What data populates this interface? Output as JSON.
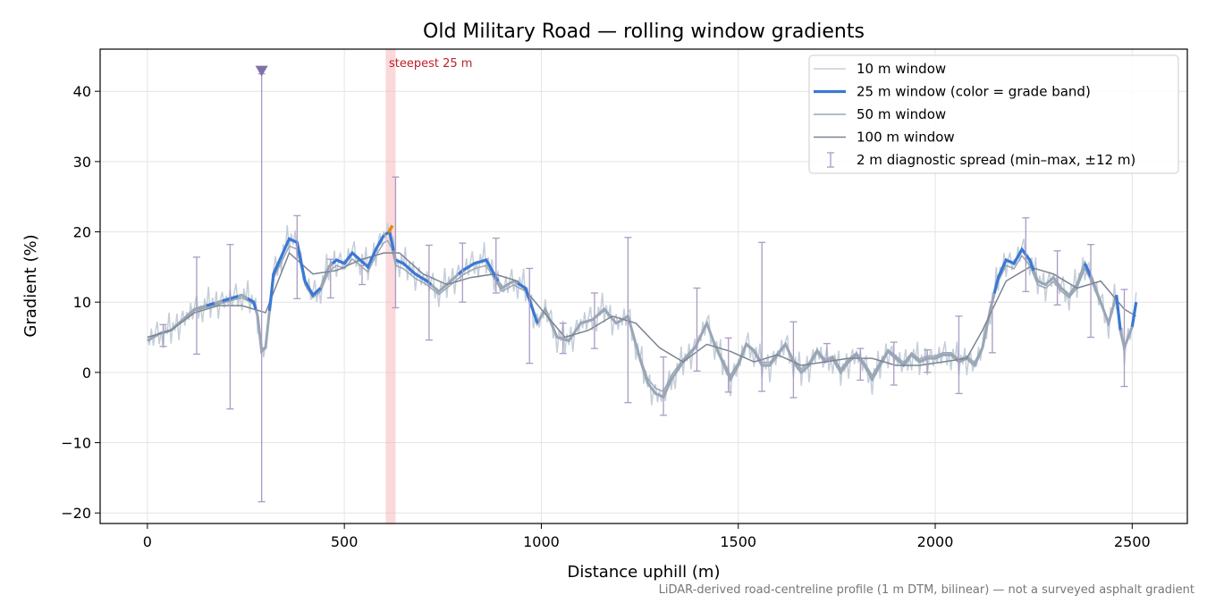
{
  "chart_data": {
    "type": "line",
    "title": "Old Military Road — rolling window gradients",
    "xlabel": "Distance uphill (m)",
    "ylabel": "Gradient (%)",
    "xlim": [
      -120,
      2640
    ],
    "ylim": [
      -21.5,
      46
    ],
    "x_ticks": [
      0,
      500,
      1000,
      1500,
      2000,
      2500
    ],
    "y_ticks": [
      -20,
      -10,
      0,
      10,
      20,
      30,
      40
    ],
    "grid": true,
    "legend_position": "top-right",
    "footnote": "LiDAR-derived road-centreline profile (1 m DTM, bilinear) — not a surveyed asphalt gradient",
    "annotations": {
      "steepest_label": "steepest 25 m",
      "steepest_span": [
        605,
        630
      ],
      "marker": {
        "x": 290,
        "y": 43
      }
    },
    "colors": {
      "w10": "#c5ced9",
      "w25": "#3a78d4",
      "w50": "#99a6b5",
      "w100": "#7a8490",
      "steep_point": "#e08a10",
      "errorbar": "#a99bc2",
      "marker": "#8071a8",
      "highlight_band": "#f5b3b8"
    },
    "profile": {
      "x": [
        0,
        30,
        60,
        90,
        120,
        150,
        180,
        210,
        240,
        270,
        280,
        290,
        300,
        320,
        340,
        360,
        380,
        400,
        420,
        440,
        460,
        480,
        500,
        520,
        540,
        560,
        580,
        600,
        615,
        630,
        650,
        680,
        710,
        740,
        770,
        800,
        830,
        860,
        880,
        900,
        930,
        960,
        990,
        1010,
        1040,
        1070,
        1100,
        1130,
        1160,
        1190,
        1220,
        1250,
        1270,
        1290,
        1310,
        1330,
        1360,
        1390,
        1420,
        1440,
        1460,
        1480,
        1500,
        1520,
        1540,
        1560,
        1580,
        1600,
        1620,
        1640,
        1660,
        1680,
        1700,
        1720,
        1740,
        1760,
        1780,
        1800,
        1820,
        1840,
        1860,
        1880,
        1900,
        1920,
        1940,
        1960,
        1980,
        2000,
        2020,
        2040,
        2060,
        2080,
        2100,
        2120,
        2140,
        2160,
        2180,
        2200,
        2220,
        2240,
        2260,
        2280,
        2300,
        2320,
        2340,
        2360,
        2380,
        2400,
        2420,
        2440,
        2460,
        2470,
        2480,
        2500,
        2510
      ],
      "y": [
        4.5,
        5.5,
        6,
        7.5,
        9,
        9.5,
        10,
        10.5,
        11,
        10,
        8,
        3,
        3.5,
        14,
        16.5,
        19,
        18.5,
        13,
        11,
        12,
        15,
        16,
        15.5,
        17,
        16,
        15,
        17.5,
        19.5,
        20,
        16,
        15.5,
        14,
        13,
        11.5,
        13,
        14.5,
        15.5,
        16,
        14,
        12,
        13,
        12,
        7,
        9,
        5,
        4.5,
        7,
        7.5,
        9,
        7,
        8,
        2,
        -1.5,
        -3,
        -3.5,
        -1,
        1.5,
        3.5,
        7,
        4,
        1.5,
        -1,
        1,
        4,
        3,
        1,
        1,
        2.5,
        4,
        1.5,
        0,
        1,
        3,
        1.5,
        2,
        0,
        1.5,
        2.5,
        1,
        -1,
        1,
        3,
        2,
        1,
        2.5,
        1.5,
        2,
        2,
        2.5,
        2.5,
        1.5,
        2,
        1,
        3.5,
        9,
        13.5,
        16,
        15.5,
        17.5,
        16,
        13,
        12.5,
        13.5,
        12,
        11,
        12.5,
        15.5,
        13,
        10,
        7,
        11,
        6,
        3.5,
        6.5,
        10
      ]
    },
    "w10_offsets": [
      0.6,
      -0.8,
      1.4,
      -1.2,
      0.5,
      1.9,
      -1.5,
      0.3,
      -2.2,
      1.1,
      -0.4,
      2.6,
      -1.9,
      0.9,
      -0.6,
      1.6,
      -2.4,
      0.2,
      1.3,
      -1.1
    ],
    "w100": {
      "x": [
        0,
        60,
        120,
        180,
        240,
        300,
        360,
        420,
        480,
        540,
        600,
        640,
        700,
        760,
        820,
        880,
        940,
        1000,
        1060,
        1120,
        1180,
        1240,
        1300,
        1360,
        1420,
        1480,
        1540,
        1600,
        1660,
        1720,
        1780,
        1840,
        1900,
        1960,
        2020,
        2080,
        2120,
        2180,
        2240,
        2300,
        2360,
        2420,
        2480,
        2510
      ],
      "y": [
        5,
        6,
        8.5,
        9.5,
        9.5,
        8.5,
        17,
        14,
        14.5,
        16,
        17,
        17,
        14,
        12.5,
        13.5,
        14,
        13,
        9,
        5,
        6,
        8,
        7,
        3.5,
        1.5,
        4,
        3,
        1.5,
        2.5,
        1,
        1.5,
        2,
        2,
        1,
        1,
        1.5,
        2,
        6,
        13,
        15,
        14,
        12,
        13,
        9,
        8
      ]
    },
    "band_ranges": [
      [
        150,
        170
      ],
      [
        190,
        230
      ],
      [
        255,
        275
      ],
      [
        310,
        440
      ],
      [
        470,
        600
      ],
      [
        605,
        628
      ],
      [
        630,
        720
      ],
      [
        790,
        890
      ],
      [
        940,
        990
      ],
      [
        2150,
        2250
      ],
      [
        2380,
        2395
      ],
      [
        2460,
        2470
      ],
      [
        2500,
        2510
      ]
    ],
    "steepest_point": {
      "x": 617,
      "y": 20.5
    },
    "errorbars": [
      {
        "x": 40,
        "lo": 3.7,
        "hi": 6.8
      },
      {
        "x": 125,
        "lo": 2.6,
        "hi": 16.4
      },
      {
        "x": 210,
        "lo": -5.2,
        "hi": 18.2
      },
      {
        "x": 290,
        "lo": -18.4,
        "hi": 42.5
      },
      {
        "x": 380,
        "lo": 10.5,
        "hi": 22.3
      },
      {
        "x": 465,
        "lo": 10.6,
        "hi": 16.1
      },
      {
        "x": 545,
        "lo": 12.5,
        "hi": 15.2
      },
      {
        "x": 630,
        "lo": 9.2,
        "hi": 27.8
      },
      {
        "x": 715,
        "lo": 4.6,
        "hi": 18.1
      },
      {
        "x": 800,
        "lo": 10,
        "hi": 18.4
      },
      {
        "x": 885,
        "lo": 11.3,
        "hi": 19.1
      },
      {
        "x": 970,
        "lo": 1.3,
        "hi": 14.8
      },
      {
        "x": 1055,
        "lo": 2.7,
        "hi": 7
      },
      {
        "x": 1135,
        "lo": 3.4,
        "hi": 11.3
      },
      {
        "x": 1220,
        "lo": -4.3,
        "hi": 19.2
      },
      {
        "x": 1310,
        "lo": -6.1,
        "hi": 2.2
      },
      {
        "x": 1395,
        "lo": 0.2,
        "hi": 12
      },
      {
        "x": 1475,
        "lo": -2.8,
        "hi": 4.9
      },
      {
        "x": 1560,
        "lo": -2.7,
        "hi": 18.5
      },
      {
        "x": 1640,
        "lo": -3.6,
        "hi": 7.2
      },
      {
        "x": 1725,
        "lo": 1.7,
        "hi": 4.1
      },
      {
        "x": 1810,
        "lo": -1.1,
        "hi": 3.4
      },
      {
        "x": 1895,
        "lo": -1.8,
        "hi": 4.3
      },
      {
        "x": 1980,
        "lo": 0,
        "hi": 3.2
      },
      {
        "x": 2060,
        "lo": -3,
        "hi": 8
      },
      {
        "x": 2145,
        "lo": 2.8,
        "hi": 10
      },
      {
        "x": 2230,
        "lo": 11.5,
        "hi": 22
      },
      {
        "x": 2310,
        "lo": 9.6,
        "hi": 17.3
      },
      {
        "x": 2395,
        "lo": 5,
        "hi": 18.2
      },
      {
        "x": 2480,
        "lo": -2,
        "hi": 11.8
      }
    ],
    "legend": [
      {
        "key": "w10",
        "label": "10 m window",
        "style": "line-thin"
      },
      {
        "key": "w25",
        "label": "25 m window (color = grade band)",
        "style": "line-thick"
      },
      {
        "key": "w50",
        "label": "50 m window",
        "style": "line-mid"
      },
      {
        "key": "w100",
        "label": "100 m window",
        "style": "line-dark"
      },
      {
        "key": "errorbar",
        "label": "2 m diagnostic spread (min–max, ±12 m)",
        "style": "errorbar"
      }
    ]
  }
}
